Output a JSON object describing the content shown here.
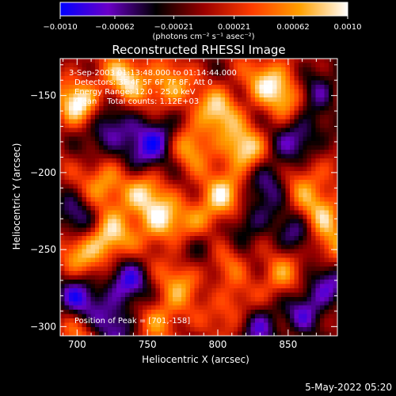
{
  "chart_data": {
    "type": "heatmap",
    "title": "Reconstructed RHESSI Image",
    "xlabel": "Heliocentric X (arcsec)",
    "ylabel": "Heliocentric Y (arcsec)",
    "xlim": [
      688,
      885
    ],
    "ylim": [
      -306,
      -126
    ],
    "x_ticks": [
      700,
      750,
      800,
      850
    ],
    "y_ticks": [
      -150,
      -200,
      -250,
      -300
    ],
    "colorbar": {
      "min": -0.001,
      "max": 0.001,
      "tick_values": [
        -0.001,
        -0.00062,
        -0.00021,
        0.00021,
        0.00062,
        0.001
      ],
      "tick_labels": [
        "−0.0010",
        "−0.00062",
        "−0.00021",
        "0.00021",
        "0.00062",
        "0.0010"
      ],
      "units_label": "(photons cm⁻² s⁻¹ asec⁻²)",
      "colors": [
        "#0000ff",
        "#6a00c8",
        "#000000",
        "#9a0000",
        "#ff3c00",
        "#ffa000",
        "#ffffff"
      ]
    },
    "annotations": {
      "time_range": "3-Sep-2003 01:13:48.000 to 01:14:44.000",
      "detectors": "Detectors: 3F 4F 5F 6F 7F 8F, Att 0",
      "energy_range": "Energy Range: 12.0 - 25.0 keV",
      "clean_counts": "Clean    Total counts: 1.12E+03",
      "peak_position": "Position of Peak = [701,-158]"
    },
    "hotspots": [
      {
        "x": 701,
        "y": -155,
        "v": 1.0
      },
      {
        "x": 735,
        "y": -138,
        "v": 0.85
      },
      {
        "x": 765,
        "y": -145,
        "v": 0.75
      },
      {
        "x": 780,
        "y": -182,
        "v": 0.7
      },
      {
        "x": 800,
        "y": -160,
        "v": 0.8
      },
      {
        "x": 818,
        "y": -185,
        "v": 0.9
      },
      {
        "x": 835,
        "y": -140,
        "v": 0.7
      },
      {
        "x": 850,
        "y": -150,
        "v": 0.65
      },
      {
        "x": 720,
        "y": -205,
        "v": 0.7
      },
      {
        "x": 745,
        "y": -215,
        "v": 0.8
      },
      {
        "x": 760,
        "y": -232,
        "v": 0.85
      },
      {
        "x": 790,
        "y": -230,
        "v": 0.55
      },
      {
        "x": 805,
        "y": -215,
        "v": 0.75
      },
      {
        "x": 860,
        "y": -205,
        "v": 0.6
      },
      {
        "x": 875,
        "y": -225,
        "v": 0.7
      },
      {
        "x": 722,
        "y": -243,
        "v": 0.95
      },
      {
        "x": 700,
        "y": -255,
        "v": 0.6
      },
      {
        "x": 775,
        "y": -270,
        "v": 0.6
      },
      {
        "x": 805,
        "y": -255,
        "v": 0.55
      },
      {
        "x": 845,
        "y": -268,
        "v": 0.65
      },
      {
        "x": 880,
        "y": -250,
        "v": 0.55
      },
      {
        "x": 760,
        "y": -295,
        "v": 0.6
      },
      {
        "x": 810,
        "y": -290,
        "v": 0.5
      },
      {
        "x": 700,
        "y": -305,
        "v": 0.45
      }
    ],
    "coldspots": [
      {
        "x": 720,
        "y": -172,
        "v": -0.7
      },
      {
        "x": 742,
        "y": -190,
        "v": -0.6
      },
      {
        "x": 760,
        "y": -175,
        "v": -0.75
      },
      {
        "x": 820,
        "y": -232,
        "v": -0.55
      },
      {
        "x": 838,
        "y": -205,
        "v": -0.65
      },
      {
        "x": 858,
        "y": -178,
        "v": -0.7
      },
      {
        "x": 870,
        "y": -145,
        "v": -0.6
      },
      {
        "x": 700,
        "y": -230,
        "v": -0.55
      },
      {
        "x": 735,
        "y": -272,
        "v": -0.75
      },
      {
        "x": 700,
        "y": -282,
        "v": -0.8
      },
      {
        "x": 792,
        "y": -250,
        "v": -0.6
      },
      {
        "x": 830,
        "y": -300,
        "v": -0.65
      },
      {
        "x": 860,
        "y": -290,
        "v": -0.55
      },
      {
        "x": 877,
        "y": -272,
        "v": -0.7
      },
      {
        "x": 725,
        "y": -300,
        "v": -0.6
      },
      {
        "x": 855,
        "y": -240,
        "v": -0.5
      }
    ]
  },
  "footer": {
    "date": "5-May-2022 05:20"
  }
}
